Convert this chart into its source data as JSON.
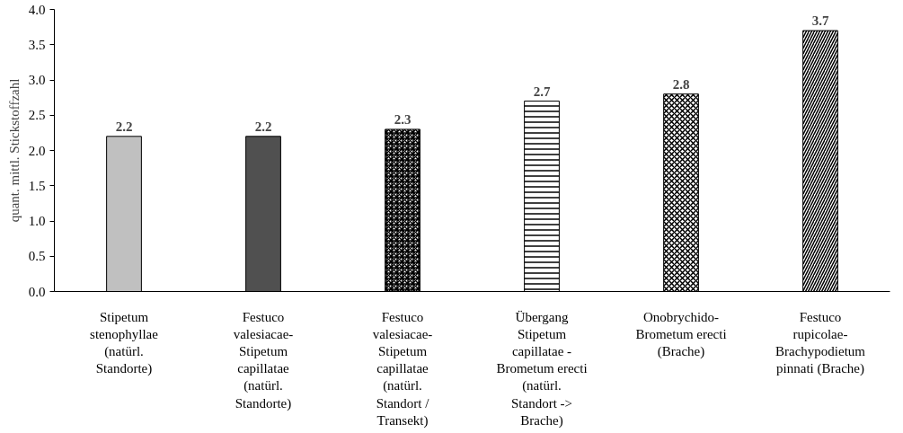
{
  "chart_data": {
    "type": "bar",
    "ylabel": "quant. mittl. Stickstoffzahl",
    "categories": [
      "Stipetum stenophyllae (natürl. Standorte)",
      "Festuco valesiacae-Stipetum capillatae (natürl. Standorte)",
      "Festuco valesiacae-Stipetum capillatae (natürl. Standort / Transekt)",
      "Übergang Stipetum capillatae - Brometum erecti (natürl. Standort -> Brache)",
      "Onobrychido-Brometum erecti (Brache)",
      "Festuco rupicolae-Brachypodietum pinnati (Brache)"
    ],
    "values": [
      2.2,
      2.2,
      2.3,
      2.7,
      2.8,
      3.7
    ],
    "colors": [
      "#c0c0c0",
      "#505050",
      "#000000",
      "#000000",
      "#000000",
      "#000000"
    ],
    "ylim": [
      0,
      4
    ],
    "yticks": [
      {
        "value": 0,
        "label": "0.0"
      },
      {
        "value": 0.5,
        "label": "0.5"
      },
      {
        "value": 1,
        "label": "1.0"
      },
      {
        "value": 1.5,
        "label": "1.5"
      },
      {
        "value": 2,
        "label": "2.0"
      },
      {
        "value": 2.5,
        "label": "2.5"
      },
      {
        "value": 3,
        "label": "3.0"
      },
      {
        "value": 3.5,
        "label": "3.5"
      },
      {
        "value": 4,
        "label": "4.0"
      }
    ],
    "data_labels": true,
    "grid": false
  }
}
